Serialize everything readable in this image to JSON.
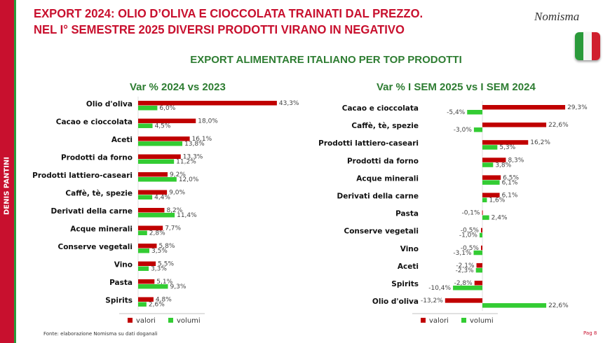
{
  "sidebar": {
    "author": "DENIS PANTINI"
  },
  "header": {
    "title_line1": "EXPORT 2024: OLIO D’OLIVA E CIOCCOLATA TRAINATI DAL PREZZO.",
    "title_line2": "NEL I° SEMESTRE 2025 DIVERSI PRODOTTI VIRANO IN NEGATIVO",
    "logo": "Nomisma",
    "subtitle": "EXPORT ALIMENTARE ITALIANO PER TOP PRODOTTI"
  },
  "colors": {
    "valori": "#c00000",
    "volumi": "#33cc33"
  },
  "chart_data": [
    {
      "type": "bar",
      "orientation": "horizontal",
      "title": "Var % 2024 vs 2023",
      "categories": [
        "Olio d'oliva",
        "Cacao e cioccolata",
        "Aceti",
        "Prodotti da forno",
        "Prodotti lattiero-caseari",
        "Caffè, tè, spezie",
        "Derivati della carne",
        "Acque minerali",
        "Conserve vegetali",
        "Vino",
        "Pasta",
        "Spirits"
      ],
      "series": [
        {
          "name": "valori",
          "values": [
            43.3,
            18.0,
            16.1,
            13.3,
            9.2,
            9.0,
            8.2,
            7.7,
            5.8,
            5.5,
            5.1,
            4.8
          ]
        },
        {
          "name": "volumi",
          "values": [
            6.0,
            4.5,
            13.8,
            11.2,
            12.0,
            4.4,
            11.4,
            2.8,
            3.5,
            3.3,
            9.3,
            2.6
          ]
        }
      ],
      "legend": "bottom"
    },
    {
      "type": "bar",
      "orientation": "horizontal",
      "title": "Var % I SEM 2025 vs I SEM 2024",
      "categories": [
        "Cacao e cioccolata",
        "Caffè, tè, spezie",
        "Prodotti lattiero-caseari",
        "Prodotti da forno",
        "Acque minerali",
        "Derivati della carne",
        "Pasta",
        "Conserve vegetali",
        "Vino",
        "Aceti",
        "Spirits",
        "Olio d'oliva"
      ],
      "series": [
        {
          "name": "valori",
          "values": [
            29.3,
            22.6,
            16.2,
            8.3,
            6.5,
            6.1,
            -0.1,
            -0.5,
            -0.5,
            -2.1,
            -2.8,
            -13.2
          ]
        },
        {
          "name": "volumi",
          "values": [
            -5.4,
            -3.0,
            5.3,
            3.8,
            6.1,
            1.6,
            2.4,
            -1.0,
            -3.1,
            -2.3,
            -10.4,
            22.6
          ]
        }
      ],
      "legend": "bottom"
    }
  ],
  "footer": {
    "source": "Fonte: elaborazione Nomisma su dati doganali",
    "page": "Pag 8"
  }
}
